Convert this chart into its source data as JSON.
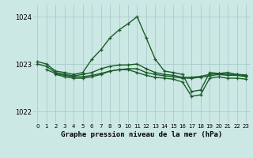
{
  "bg_color": "#cce8e4",
  "grid_color": "#aacccc",
  "line_color": "#1a5c2a",
  "title": "Graphe pression niveau de la mer (hPa)",
  "ylim": [
    1021.75,
    1024.25
  ],
  "yticks": [
    1022,
    1023,
    1024
  ],
  "xlim": [
    -0.5,
    23.5
  ],
  "xticks": [
    0,
    1,
    2,
    3,
    4,
    5,
    6,
    7,
    8,
    9,
    10,
    11,
    12,
    13,
    14,
    15,
    16,
    17,
    18,
    19,
    20,
    21,
    22,
    23
  ],
  "series": [
    {
      "x": [
        0,
        1,
        2,
        3,
        4,
        5,
        6,
        7,
        8,
        9,
        10,
        11,
        12,
        13,
        14,
        15,
        16,
        17,
        18,
        19,
        20,
        21,
        22,
        23
      ],
      "y": [
        1023.05,
        1023.0,
        1022.85,
        1022.82,
        1022.78,
        1022.82,
        1023.1,
        1023.3,
        1023.55,
        1023.72,
        1023.85,
        1024.0,
        1023.55,
        1023.1,
        1022.85,
        1022.82,
        1022.78,
        1022.42,
        1022.45,
        1022.82,
        1022.8,
        1022.82,
        1022.78,
        1022.77
      ]
    },
    {
      "x": [
        0,
        1,
        2,
        3,
        4,
        5,
        6,
        7,
        8,
        9,
        10,
        11,
        12,
        13,
        14,
        15,
        16,
        17,
        18,
        19,
        20,
        21,
        22,
        23
      ],
      "y": [
        1023.0,
        1022.95,
        1022.82,
        1022.78,
        1022.75,
        1022.78,
        1022.82,
        1022.9,
        1022.95,
        1022.98,
        1022.98,
        1023.0,
        1022.9,
        1022.82,
        1022.78,
        1022.76,
        1022.72,
        1022.72,
        1022.74,
        1022.78,
        1022.8,
        1022.78,
        1022.78,
        1022.75
      ]
    },
    {
      "x": [
        1,
        2,
        3,
        4,
        5,
        6,
        7,
        8,
        9,
        10,
        11,
        12,
        13,
        14,
        15,
        16,
        17,
        18,
        19,
        20,
        21,
        22,
        23
      ],
      "y": [
        1022.88,
        1022.8,
        1022.76,
        1022.73,
        1022.73,
        1022.76,
        1022.8,
        1022.85,
        1022.88,
        1022.9,
        1022.9,
        1022.82,
        1022.78,
        1022.75,
        1022.73,
        1022.7,
        1022.7,
        1022.72,
        1022.75,
        1022.78,
        1022.76,
        1022.76,
        1022.73
      ]
    },
    {
      "x": [
        2,
        3,
        4,
        5,
        6,
        7,
        8,
        9,
        10,
        11,
        12,
        13,
        14,
        15,
        16,
        17,
        18,
        19,
        20,
        21,
        22,
        23
      ],
      "y": [
        1022.78,
        1022.73,
        1022.7,
        1022.7,
        1022.73,
        1022.78,
        1022.85,
        1022.88,
        1022.88,
        1022.82,
        1022.76,
        1022.72,
        1022.7,
        1022.68,
        1022.62,
        1022.32,
        1022.35,
        1022.7,
        1022.73,
        1022.7,
        1022.7,
        1022.68
      ]
    }
  ],
  "marker": "+",
  "markersize": 3.5,
  "linewidth": 1.0
}
